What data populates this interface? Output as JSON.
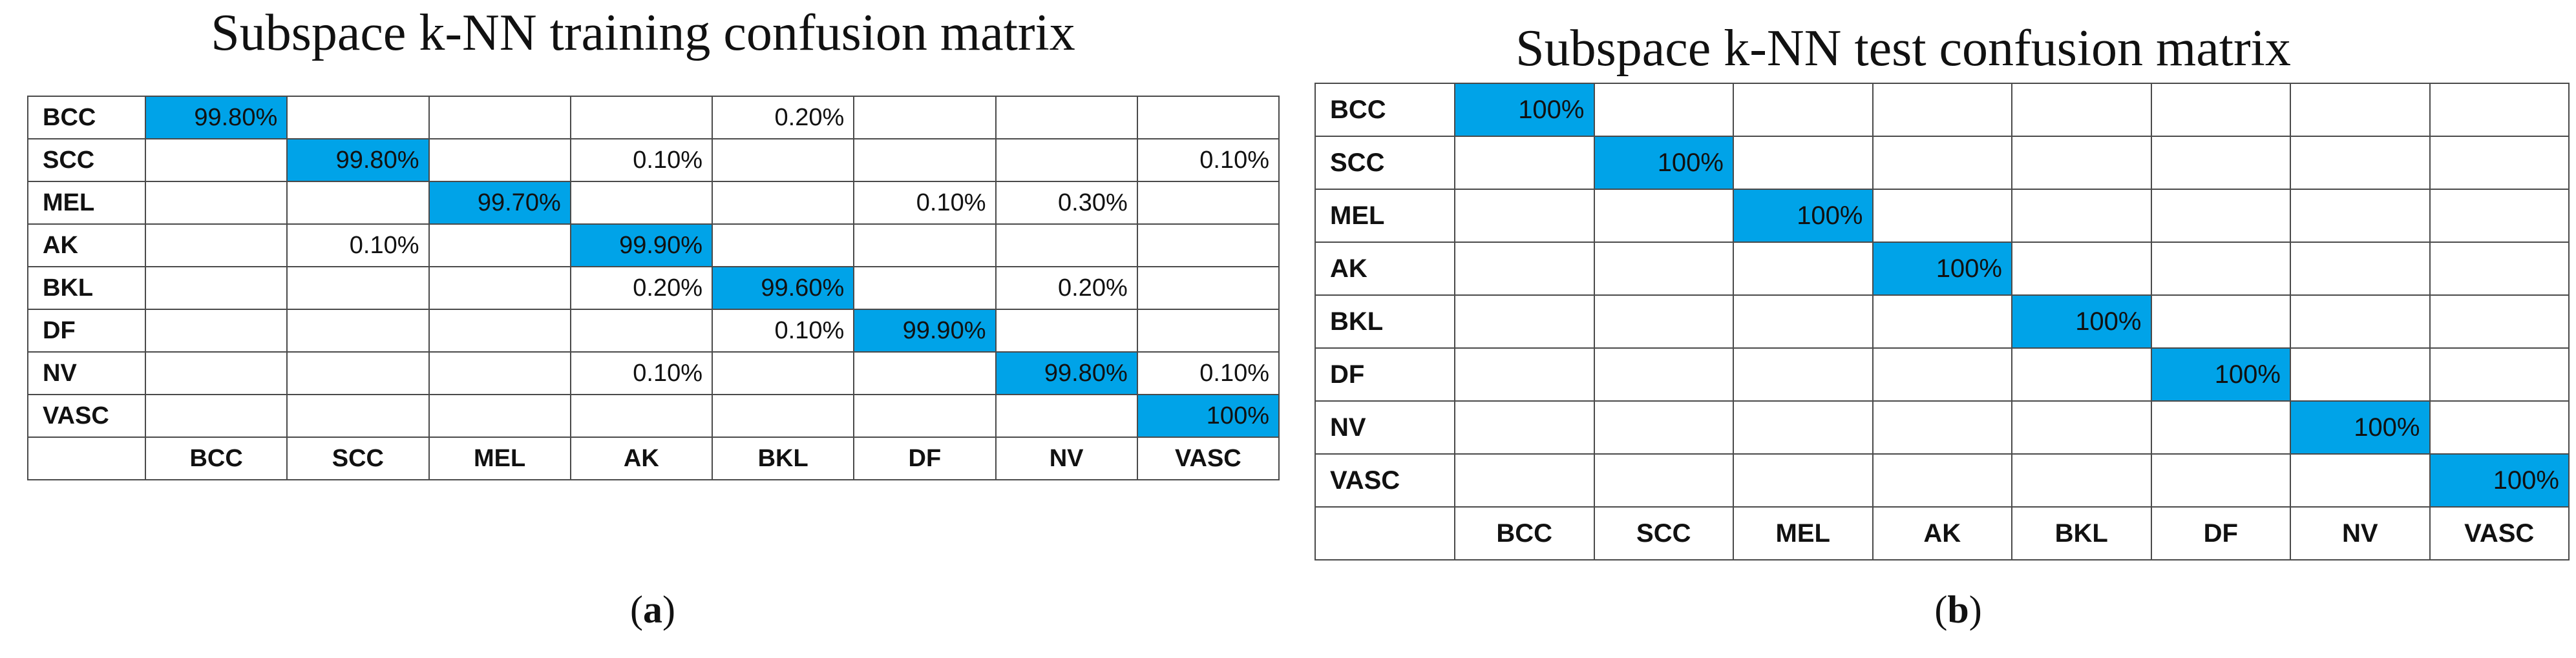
{
  "colors": {
    "diagonal": "#00a3e8",
    "grid": "#4a4a4a",
    "text": "#111111"
  },
  "chart_data": [
    {
      "type": "table",
      "title": "Subspace k-NN training confusion matrix",
      "caption_letter": "a",
      "row_labels": [
        "BCC",
        "SCC",
        "MEL",
        "AK",
        "BKL",
        "DF",
        "NV",
        "VASC"
      ],
      "col_labels": [
        "BCC",
        "SCC",
        "MEL",
        "AK",
        "BKL",
        "DF",
        "NV",
        "VASC"
      ],
      "cells": [
        [
          "99.80%",
          "",
          "",
          "",
          "0.20%",
          "",
          "",
          ""
        ],
        [
          "",
          "99.80%",
          "",
          "0.10%",
          "",
          "",
          "",
          "0.10%"
        ],
        [
          "",
          "",
          "99.70%",
          "",
          "",
          "0.10%",
          "0.30%",
          ""
        ],
        [
          "",
          "0.10%",
          "",
          "99.90%",
          "",
          "",
          "",
          ""
        ],
        [
          "",
          "",
          "",
          "0.20%",
          "99.60%",
          "",
          "0.20%",
          ""
        ],
        [
          "",
          "",
          "",
          "",
          "0.10%",
          "99.90%",
          "",
          ""
        ],
        [
          "",
          "",
          "",
          "0.10%",
          "",
          "",
          "99.80%",
          "0.10%"
        ],
        [
          "",
          "",
          "",
          "",
          "",
          "",
          "",
          "100%"
        ]
      ]
    },
    {
      "type": "table",
      "title": "Subspace k-NN test confusion matrix",
      "caption_letter": "b",
      "row_labels": [
        "BCC",
        "SCC",
        "MEL",
        "AK",
        "BKL",
        "DF",
        "NV",
        "VASC"
      ],
      "col_labels": [
        "BCC",
        "SCC",
        "MEL",
        "AK",
        "BKL",
        "DF",
        "NV",
        "VASC"
      ],
      "cells": [
        [
          "100%",
          "",
          "",
          "",
          "",
          "",
          "",
          ""
        ],
        [
          "",
          "100%",
          "",
          "",
          "",
          "",
          "",
          ""
        ],
        [
          "",
          "",
          "100%",
          "",
          "",
          "",
          "",
          ""
        ],
        [
          "",
          "",
          "",
          "100%",
          "",
          "",
          "",
          ""
        ],
        [
          "",
          "",
          "",
          "",
          "100%",
          "",
          "",
          ""
        ],
        [
          "",
          "",
          "",
          "",
          "",
          "100%",
          "",
          ""
        ],
        [
          "",
          "",
          "",
          "",
          "",
          "",
          "100%",
          ""
        ],
        [
          "",
          "",
          "",
          "",
          "",
          "",
          "",
          "100%"
        ]
      ]
    }
  ]
}
